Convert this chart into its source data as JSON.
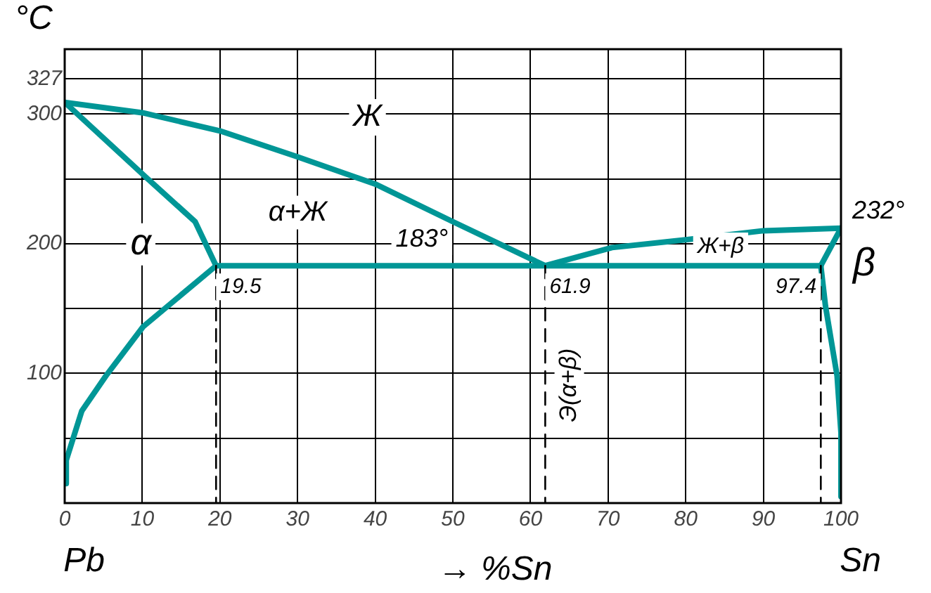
{
  "chart_data": {
    "type": "line",
    "xlabel": "→ %Sn",
    "ylabel": "°C",
    "xlim": [
      0,
      100
    ],
    "xticks": [
      0,
      10,
      20,
      30,
      40,
      50,
      60,
      70,
      80,
      90,
      100
    ],
    "ylim": [
      0,
      350
    ],
    "yticks": [
      {
        "value": 50,
        "label": null
      },
      100,
      {
        "value": 150,
        "label": null
      },
      200,
      {
        "value": 250,
        "label": null
      },
      300,
      327
    ],
    "grid": true,
    "legend": false,
    "marker": "none",
    "series": [
      {
        "color": "#009696",
        "line_style": "solid",
        "x": [
          0,
          10,
          20,
          30,
          40,
          50,
          61.9
        ],
        "values": [
          309,
          301,
          287,
          267,
          246,
          217,
          183
        ]
      },
      {
        "color": "#009696",
        "line_style": "solid",
        "x": [
          61.9,
          70.5,
          80,
          90,
          100
        ],
        "values": [
          183,
          197,
          203,
          210,
          212
        ]
      },
      {
        "color": "#009696",
        "line_style": "solid",
        "x": [
          0,
          10.7,
          16.8,
          19.5
        ],
        "values": [
          309,
          250,
          217,
          183
        ]
      },
      {
        "color": "#009696",
        "line_style": "solid",
        "x": [
          19.5,
          10.1,
          5.3,
          2.2,
          0.2,
          0.2
        ],
        "values": [
          183,
          136,
          98,
          71,
          33,
          15
        ]
      },
      {
        "color": "#009696",
        "line_style": "solid",
        "x": [
          19.5,
          97.4
        ],
        "values": [
          183,
          183
        ]
      },
      {
        "color": "#009696",
        "line_style": "solid",
        "x": [
          97.4,
          100
        ],
        "values": [
          183,
          212
        ]
      },
      {
        "color": "#009696",
        "line_style": "solid",
        "x": [
          97.4,
          98,
          99.5,
          100,
          100
        ],
        "values": [
          183,
          152,
          98,
          54,
          5
        ]
      },
      {
        "color": "#000000",
        "line_style": "dashed",
        "x": [
          19.5,
          19.5
        ],
        "values": [
          183,
          0
        ]
      },
      {
        "color": "#000000",
        "line_style": "dashed",
        "x": [
          61.9,
          61.9
        ],
        "values": [
          183,
          0
        ]
      },
      {
        "color": "#000000",
        "line_style": "dashed",
        "x": [
          97.4,
          97.4
        ],
        "values": [
          183,
          0
        ]
      }
    ],
    "annotations": [
      "Ж",
      "α",
      "α+Ж",
      "183°",
      {
        "text": "19.5",
        "x": 19.5,
        "y": 183
      },
      {
        "text": "61.9",
        "x": 61.9,
        "y": 183
      },
      {
        "text": "97.4",
        "x": 97.4,
        "y": 183
      },
      {
        "text": "232°",
        "x": 100,
        "y": 212
      },
      "β",
      "Ж+β",
      "Э(α+β)",
      "Pb",
      "Sn"
    ]
  }
}
